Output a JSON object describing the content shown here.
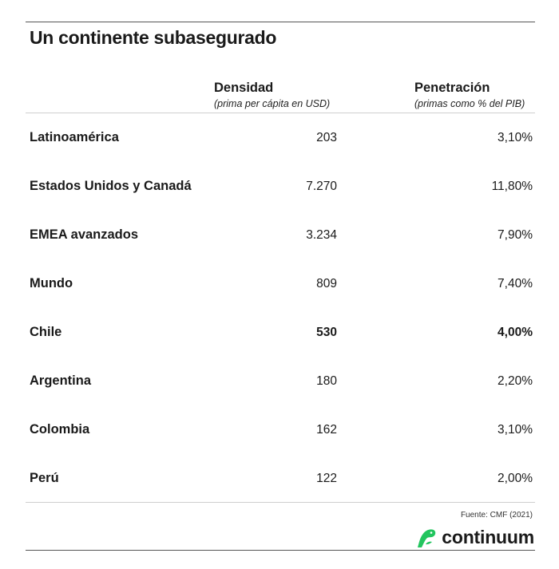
{
  "title": "Un continente subasegurado",
  "columns": {
    "density": {
      "title": "Densidad",
      "subtitle": "(prima per cápita en USD)"
    },
    "penetration": {
      "title": "Penetración",
      "subtitle": "(primas como % del PIB)"
    }
  },
  "rows": [
    {
      "label": "Latinoamérica",
      "density": "203",
      "penetration": "3,10%"
    },
    {
      "label": "Estados Unidos y Canadá",
      "density": "7.270",
      "penetration": "11,80%"
    },
    {
      "label": "EMEA avanzados",
      "density": "3.234",
      "penetration": "7,90%"
    },
    {
      "label": "Mundo",
      "density": "809",
      "penetration": "7,40%"
    },
    {
      "label": "Chile",
      "density": "530",
      "penetration": "4,00%"
    },
    {
      "label": "Argentina",
      "density": "180",
      "penetration": "2,20%"
    },
    {
      "label": "Colombia",
      "density": "162",
      "penetration": "3,10%"
    },
    {
      "label": "Perú",
      "density": "122",
      "penetration": "2,00%"
    }
  ],
  "highlight_row": "Chile",
  "source": "Fuente: CMF (2021)",
  "brand": {
    "name": "continuum",
    "icon": "continuum-logo-icon",
    "color": "#22c55e"
  }
}
